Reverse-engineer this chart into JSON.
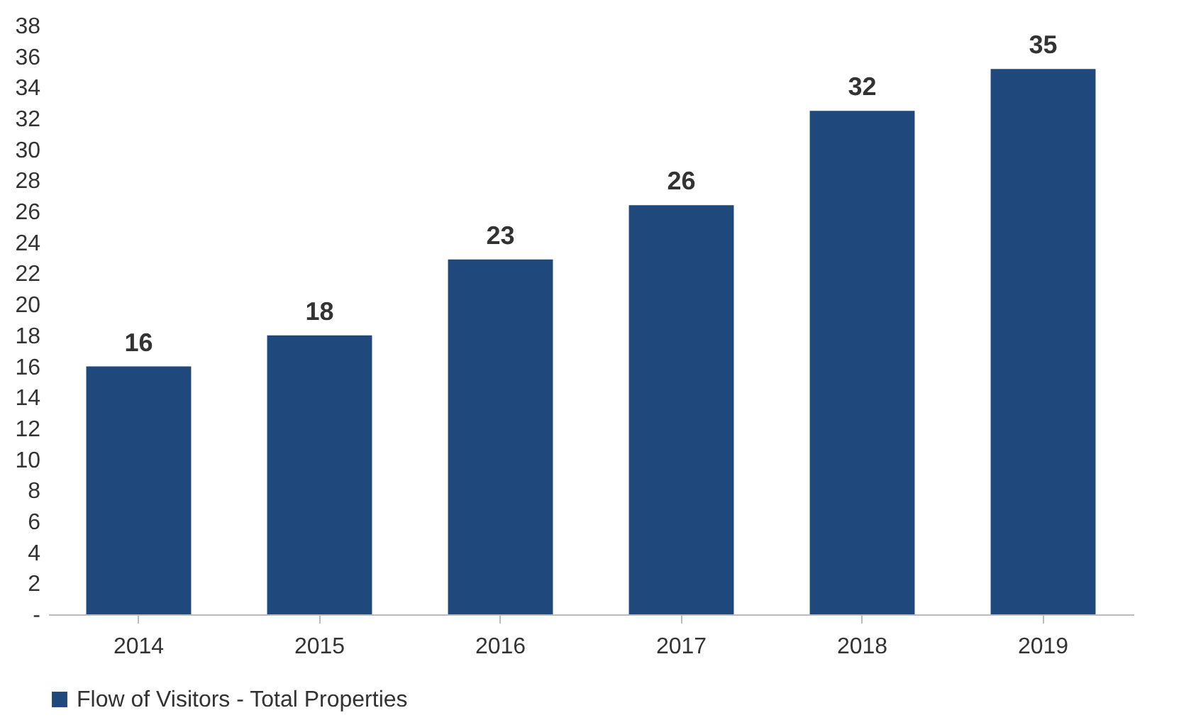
{
  "chart_data": {
    "type": "bar",
    "categories": [
      "2014",
      "2015",
      "2016",
      "2017",
      "2018",
      "2019"
    ],
    "series": [
      {
        "name": "Flow of Visitors - Total Properties",
        "color": "#1f497d",
        "values": [
          16,
          18,
          22.9,
          26.4,
          32.5,
          35.2
        ],
        "value_labels": [
          "16",
          "18",
          "23",
          "26",
          "32",
          "35"
        ]
      }
    ],
    "ylim": [
      0,
      38
    ],
    "yticks": [
      {
        "value": 0,
        "label": "-"
      },
      2,
      4,
      6,
      8,
      10,
      12,
      14,
      16,
      18,
      20,
      22,
      24,
      26,
      28,
      30,
      32,
      34,
      36,
      38
    ],
    "grid": false,
    "legend": "bottom"
  }
}
